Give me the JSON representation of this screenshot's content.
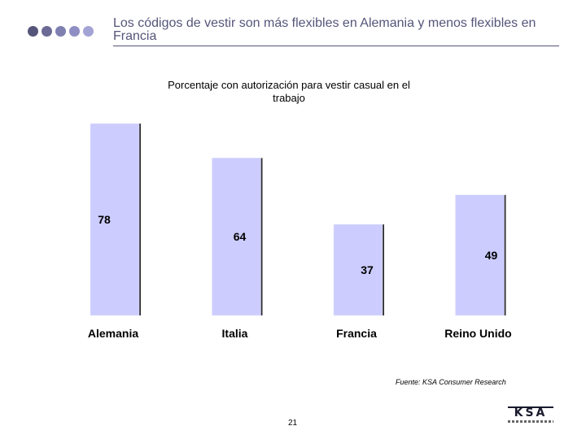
{
  "header": {
    "title": "Los códigos de vestir son más flexibles en Alemania y menos flexibles en Francia",
    "dot_colors": [
      "#55557a",
      "#6a6a95",
      "#7f7fb0",
      "#8e8ec4",
      "#a3a3d6"
    ]
  },
  "chart_data": {
    "type": "bar",
    "title": "Porcentaje con autorización para vestir casual en el trabajo",
    "categories": [
      "Alemania",
      "Italia",
      "Francia",
      "Reino Unido"
    ],
    "values": [
      78,
      64,
      37,
      49
    ],
    "xlabel": "",
    "ylabel": "",
    "ylim": [
      0,
      80
    ],
    "grid": false,
    "bar_color": "#ccccff",
    "bar_edge_color": "#333333"
  },
  "footer": {
    "source": "Fuente: KSA Consumer Research",
    "page_number": "21",
    "logo_text": "KSA"
  }
}
